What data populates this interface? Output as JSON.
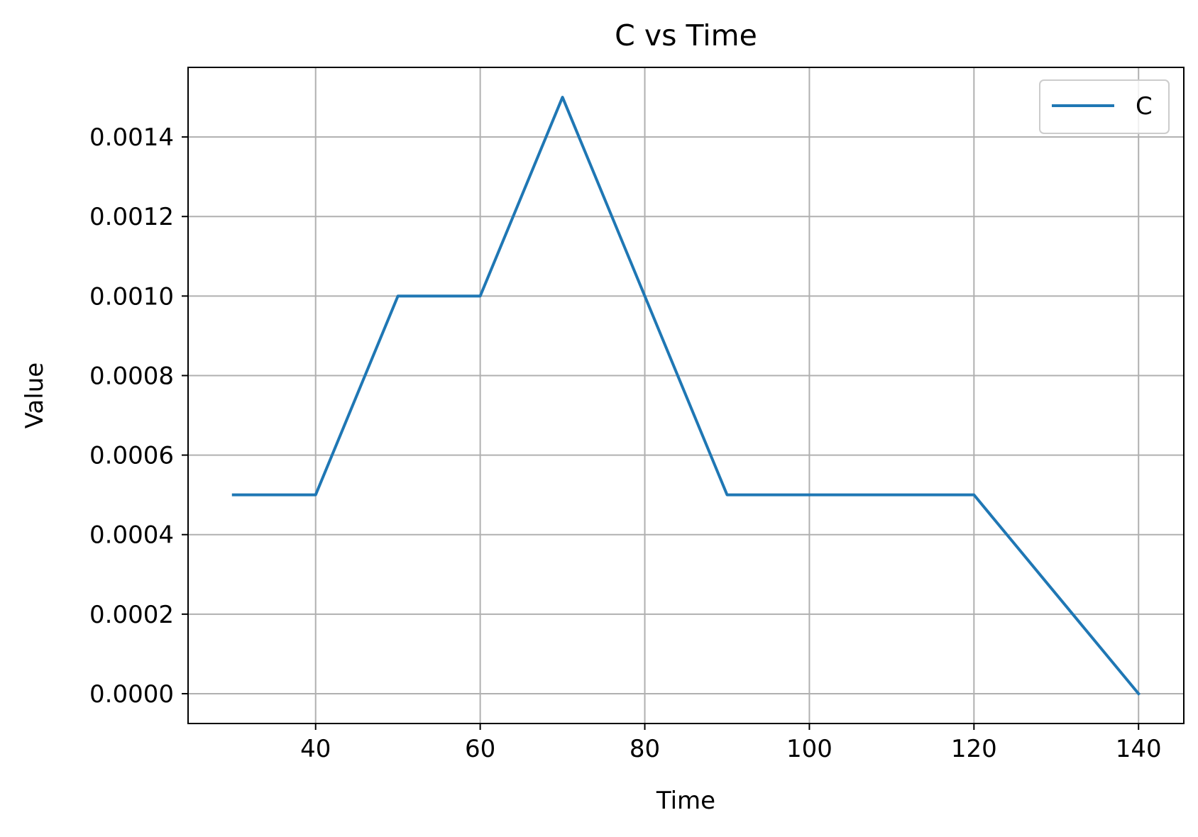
{
  "chart_data": {
    "type": "line",
    "title": "C vs Time",
    "xlabel": "Time",
    "ylabel": "Value",
    "xlim": [
      24.5,
      145.5
    ],
    "ylim": [
      -7.5e-05,
      0.001575
    ],
    "xticks": [
      40,
      60,
      80,
      100,
      120,
      140
    ],
    "xtick_labels": [
      "40",
      "60",
      "80",
      "100",
      "120",
      "140"
    ],
    "yticks": [
      0.0,
      0.0002,
      0.0004,
      0.0006,
      0.0008,
      0.001,
      0.0012,
      0.0014
    ],
    "ytick_labels": [
      "0.0000",
      "0.0002",
      "0.0004",
      "0.0006",
      "0.0008",
      "0.0010",
      "0.0012",
      "0.0014"
    ],
    "grid": true,
    "legend_position": "top-right",
    "series": [
      {
        "name": "C",
        "color": "#1f77b4",
        "x": [
          30,
          40,
          50,
          60,
          70,
          80,
          90,
          100,
          110,
          120,
          130,
          140
        ],
        "y": [
          0.0005,
          0.0005,
          0.001,
          0.001,
          0.0015,
          0.001,
          0.0005,
          0.0005,
          0.0005,
          0.0005,
          0.00025,
          0.0
        ]
      }
    ]
  }
}
